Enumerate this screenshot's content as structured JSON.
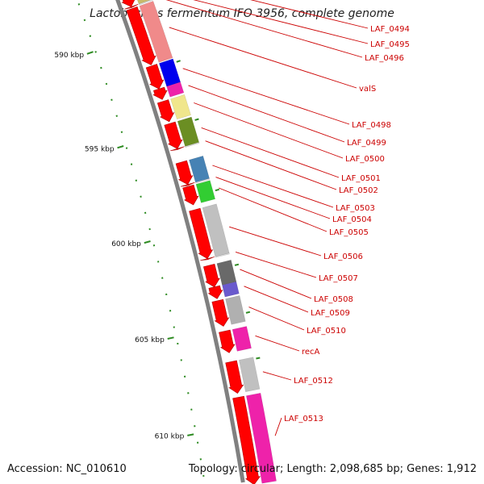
{
  "title": "Lactobacillus fermentum IFO 3956, complete genome",
  "footer": {
    "accession": "Accession: NC_010610",
    "summary": "Topology: circular; Length: 2,098,685 bp; Genes: 1,912"
  },
  "colors": {
    "backbone": "#808080",
    "cds_forward": "#ff0000",
    "gc_tick": "#2e8b22",
    "gene_label": "#cc0000"
  },
  "axis": {
    "unit": "kbp",
    "range_kbp": [
      587.2,
      612.8
    ]
  },
  "scale_ticks": [
    {
      "kbp": 590,
      "label": "590 kbp"
    },
    {
      "kbp": 595,
      "label": "595 kbp"
    },
    {
      "kbp": 600,
      "label": "600 kbp"
    },
    {
      "kbp": 605,
      "label": "605 kbp"
    },
    {
      "kbp": 610,
      "label": "610 kbp"
    }
  ],
  "genes": [
    {
      "name": "LAF_0494",
      "start_kbp": 587.0,
      "end_kbp": 587.75,
      "color": "#f4b6b6"
    },
    {
      "name": "LAF_0495",
      "start_kbp": 587.8,
      "end_kbp": 588.5,
      "color": "#c8ba6a"
    },
    {
      "name": "LAF_0496",
      "start_kbp": 588.5,
      "end_kbp": 588.55,
      "color": "#dddddd"
    },
    {
      "name": "valS",
      "start_kbp": 588.6,
      "end_kbp": 591.55,
      "color": "#f08a8a"
    },
    {
      "name": "LAF_0498",
      "start_kbp": 591.6,
      "end_kbp": 592.8,
      "color": "#0000ee"
    },
    {
      "name": "LAF_0499",
      "start_kbp": 592.8,
      "end_kbp": 593.35,
      "color": "#ee22aa"
    },
    {
      "name": "LAF_0500",
      "start_kbp": 593.45,
      "end_kbp": 594.5,
      "color": "#f0e68c"
    },
    {
      "name": "LAF_0501",
      "start_kbp": 594.6,
      "end_kbp": 595.9,
      "color": "#6b8e23"
    },
    {
      "name": "LAF_0502",
      "start_kbp": 595.9,
      "end_kbp": 595.95,
      "color": "#dddddd"
    },
    {
      "name": "LAF_0503",
      "start_kbp": 596.6,
      "end_kbp": 597.75,
      "color": "#4682b4"
    },
    {
      "name": "LAF_0504",
      "start_kbp": 597.75,
      "end_kbp": 597.8,
      "color": "#dddddd"
    },
    {
      "name": "LAF_0505",
      "start_kbp": 597.85,
      "end_kbp": 598.8,
      "color": "#32cd32"
    },
    {
      "name": "LAF_0506",
      "start_kbp": 599.05,
      "end_kbp": 601.55,
      "color": "#c0c0c0"
    },
    {
      "name": "LAF_0507",
      "start_kbp": 601.55,
      "end_kbp": 601.6,
      "color": "#dddddd"
    },
    {
      "name": "LAF_0508",
      "start_kbp": 601.9,
      "end_kbp": 603.0,
      "color": "#696969"
    },
    {
      "name": "LAF_0509",
      "start_kbp": 603.0,
      "end_kbp": 603.6,
      "color": "#6a5acd"
    },
    {
      "name": "LAF_0510",
      "start_kbp": 603.7,
      "end_kbp": 605.0,
      "color": "#b0b0b0"
    },
    {
      "name": "recA",
      "start_kbp": 605.25,
      "end_kbp": 606.35,
      "color": "#ee22aa"
    },
    {
      "name": "LAF_0512",
      "start_kbp": 606.8,
      "end_kbp": 608.4,
      "color": "#c0c0c0"
    },
    {
      "name": "LAF_0513",
      "start_kbp": 608.6,
      "end_kbp": 613.0,
      "color": "#ee22aa"
    }
  ]
}
